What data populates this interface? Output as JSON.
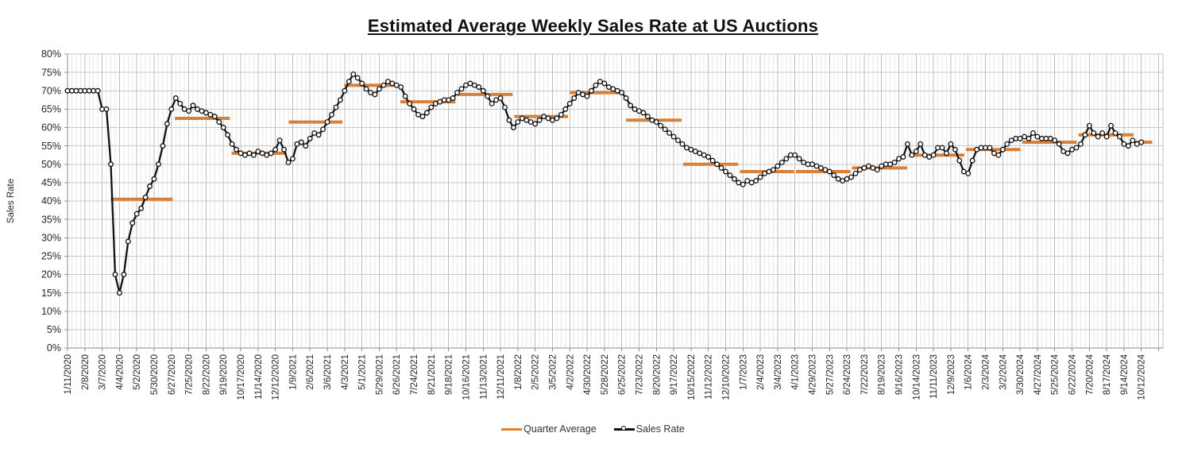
{
  "title": "Estimated Average Weekly Sales Rate at US Auctions",
  "legend": [
    {
      "label": "Quarter Average",
      "color": "#D98038"
    },
    {
      "label": "Sales Rate",
      "color": "#111111"
    }
  ],
  "chart_data": {
    "type": "line",
    "title": "Estimated Average Weekly Sales Rate at US Auctions",
    "xlabel": "",
    "ylabel": "Sales Rate",
    "ylim": [
      0,
      80
    ],
    "y_tick_step": 5,
    "y_tick_suffix": "%",
    "grid": true,
    "legend_position": "bottom",
    "x_interval": "weekly",
    "x_start_date": "1/11/2020",
    "x_end_date": "10/12/2024",
    "x_tick_every_weeks": 4,
    "x_tick_labels": [
      "1/11/2020",
      "2/8/2020",
      "3/7/2020",
      "4/4/2020",
      "5/2/2020",
      "5/30/2020",
      "6/27/2020",
      "7/25/2020",
      "8/22/2020",
      "9/19/2020",
      "10/17/2020",
      "11/14/2020",
      "12/12/2020",
      "1/9/2021",
      "2/6/2021",
      "3/6/2021",
      "4/3/2021",
      "5/1/2021",
      "5/29/2021",
      "6/26/2021",
      "7/24/2021",
      "8/21/2021",
      "9/18/2021",
      "10/16/2021",
      "11/13/2021",
      "12/11/2021",
      "1/8/2022",
      "2/5/2022",
      "3/5/2022",
      "4/2/2022",
      "4/30/2022",
      "5/28/2022",
      "6/25/2022",
      "7/23/2022",
      "8/20/2022",
      "9/17/2022",
      "10/15/2022",
      "11/12/2022",
      "12/10/2022",
      "1/7/2023",
      "2/4/2023",
      "3/4/2023",
      "4/1/2023",
      "4/29/2023",
      "5/27/2023",
      "6/24/2023",
      "7/22/2023",
      "8/19/2023",
      "9/16/2023",
      "10/14/2023",
      "11/11/2023",
      "12/9/2023",
      "1/6/2024",
      "2/3/2024",
      "3/2/2024",
      "3/30/2024",
      "4/27/2024",
      "5/25/2024",
      "6/22/2024",
      "7/20/2024",
      "8/17/2024",
      "9/14/2024",
      "10/12/2024"
    ],
    "series": [
      {
        "name": "Sales Rate",
        "style": "line_with_markers",
        "color": "#111111",
        "marker": "circle-open",
        "values": [
          70,
          70,
          70,
          70,
          70,
          70,
          70,
          70,
          65,
          65,
          50,
          20,
          15,
          20,
          29,
          34,
          36.5,
          38,
          41,
          44,
          46,
          50,
          55,
          61,
          65,
          68,
          66.5,
          65,
          64.5,
          66,
          65,
          64.5,
          64,
          63.5,
          63,
          61.5,
          60,
          58,
          55.5,
          54,
          53,
          52.5,
          53,
          52.5,
          53.5,
          53,
          52.5,
          53,
          54,
          56.5,
          54,
          50.5,
          51.5,
          55.5,
          56,
          55,
          57,
          58.5,
          58,
          59.5,
          61.5,
          63.5,
          65.5,
          67.5,
          70,
          72.5,
          74.5,
          73.5,
          72,
          70.5,
          69.5,
          69,
          70.5,
          71.5,
          72.5,
          72,
          71.5,
          71,
          68.5,
          66.5,
          65,
          63.5,
          63,
          64,
          65.5,
          66.5,
          67,
          67.5,
          67.5,
          68,
          69.5,
          70.5,
          71.5,
          72,
          71.5,
          71,
          70,
          68.5,
          66.5,
          67.5,
          68,
          65.5,
          62,
          60,
          61.5,
          62.5,
          62,
          61.5,
          61,
          62,
          63,
          62.5,
          62,
          62.5,
          63.5,
          65,
          66.5,
          68,
          69.5,
          69,
          68.5,
          70,
          71.5,
          72.5,
          72,
          71,
          70.5,
          70,
          69.5,
          68,
          66,
          65,
          64.5,
          64,
          63,
          62,
          61.5,
          60.5,
          59.5,
          58.5,
          57.5,
          56.5,
          55.5,
          54.5,
          54,
          53.5,
          53,
          52.5,
          52,
          51,
          50,
          49,
          48,
          47,
          46,
          45,
          44.5,
          45.5,
          45,
          45.5,
          46.5,
          47.5,
          48,
          48.5,
          49.5,
          50.5,
          51.5,
          52.5,
          52.5,
          51.5,
          50.5,
          50,
          50,
          49.5,
          49,
          48.5,
          48,
          47,
          46,
          45.5,
          46,
          46.5,
          47.5,
          48.5,
          49,
          49.5,
          49,
          48.5,
          49.5,
          50,
          50,
          50.5,
          51.5,
          52,
          55.5,
          52.5,
          53.5,
          55.5,
          52.5,
          52,
          52.5,
          54.5,
          54.5,
          53,
          55.5,
          54,
          51,
          48,
          47.5,
          51,
          54,
          54.5,
          54.5,
          54.5,
          53,
          52.5,
          54,
          55.5,
          56.5,
          57,
          57,
          57.5,
          57,
          58.5,
          57.5,
          57,
          57,
          57,
          56.5,
          55.5,
          53.5,
          53,
          54,
          54.5,
          55.5,
          58,
          60.5,
          58.5,
          57.5,
          58.5,
          57.5,
          60.5,
          58.5,
          57.5,
          55.5,
          55,
          56.5,
          55.5,
          56
        ]
      },
      {
        "name": "Quarter Average",
        "style": "horizontal_segments",
        "color": "#D98038",
        "segments": [
          {
            "label": "Q1 2020",
            "value": 70,
            "from_week": 0,
            "to_week": 7.6
          },
          {
            "label": "Q2 2020",
            "value": 40.5,
            "from_week": 10,
            "to_week": 24.3
          },
          {
            "label": "Q3 2020",
            "value": 62.5,
            "from_week": 24.8,
            "to_week": 37.5
          },
          {
            "label": "Q4 2020",
            "value": 53,
            "from_week": 37.9,
            "to_week": 50.6
          },
          {
            "label": "Q1 2021",
            "value": 61.5,
            "from_week": 51.1,
            "to_week": 63.5
          },
          {
            "label": "Q2 2021",
            "value": 71.5,
            "from_week": 63.9,
            "to_week": 76.5
          },
          {
            "label": "Q3 2021",
            "value": 67,
            "from_week": 76.9,
            "to_week": 89.6
          },
          {
            "label": "Q4 2021",
            "value": 69,
            "from_week": 90,
            "to_week": 102.8
          },
          {
            "label": "Q1 2022",
            "value": 63,
            "from_week": 103.2,
            "to_week": 115.6
          },
          {
            "label": "Q2 2022",
            "value": 69.5,
            "from_week": 116,
            "to_week": 128.6
          },
          {
            "label": "Q3 2022",
            "value": 62,
            "from_week": 129,
            "to_week": 141.8
          },
          {
            "label": "Q4 2022",
            "value": 50,
            "from_week": 142.2,
            "to_week": 154.9
          },
          {
            "label": "Q1 2023",
            "value": 48,
            "from_week": 155.3,
            "to_week": 167.8
          },
          {
            "label": "Q2 2023",
            "value": 48,
            "from_week": 168.2,
            "to_week": 180.8
          },
          {
            "label": "Q3 2023",
            "value": 49,
            "from_week": 181.2,
            "to_week": 193.9
          },
          {
            "label": "Q4 2023",
            "value": 52.5,
            "from_week": 194.3,
            "to_week": 207.1
          },
          {
            "label": "Q1 2024",
            "value": 54,
            "from_week": 207.5,
            "to_week": 220.1
          },
          {
            "label": "Q2 2024",
            "value": 56,
            "from_week": 220.5,
            "to_week": 233.1
          },
          {
            "label": "Q3 2024",
            "value": 58,
            "from_week": 233.5,
            "to_week": 246.2
          },
          {
            "label": "Q4 2024",
            "value": 56,
            "from_week": 246.6,
            "to_week": 250.5
          }
        ]
      }
    ]
  }
}
